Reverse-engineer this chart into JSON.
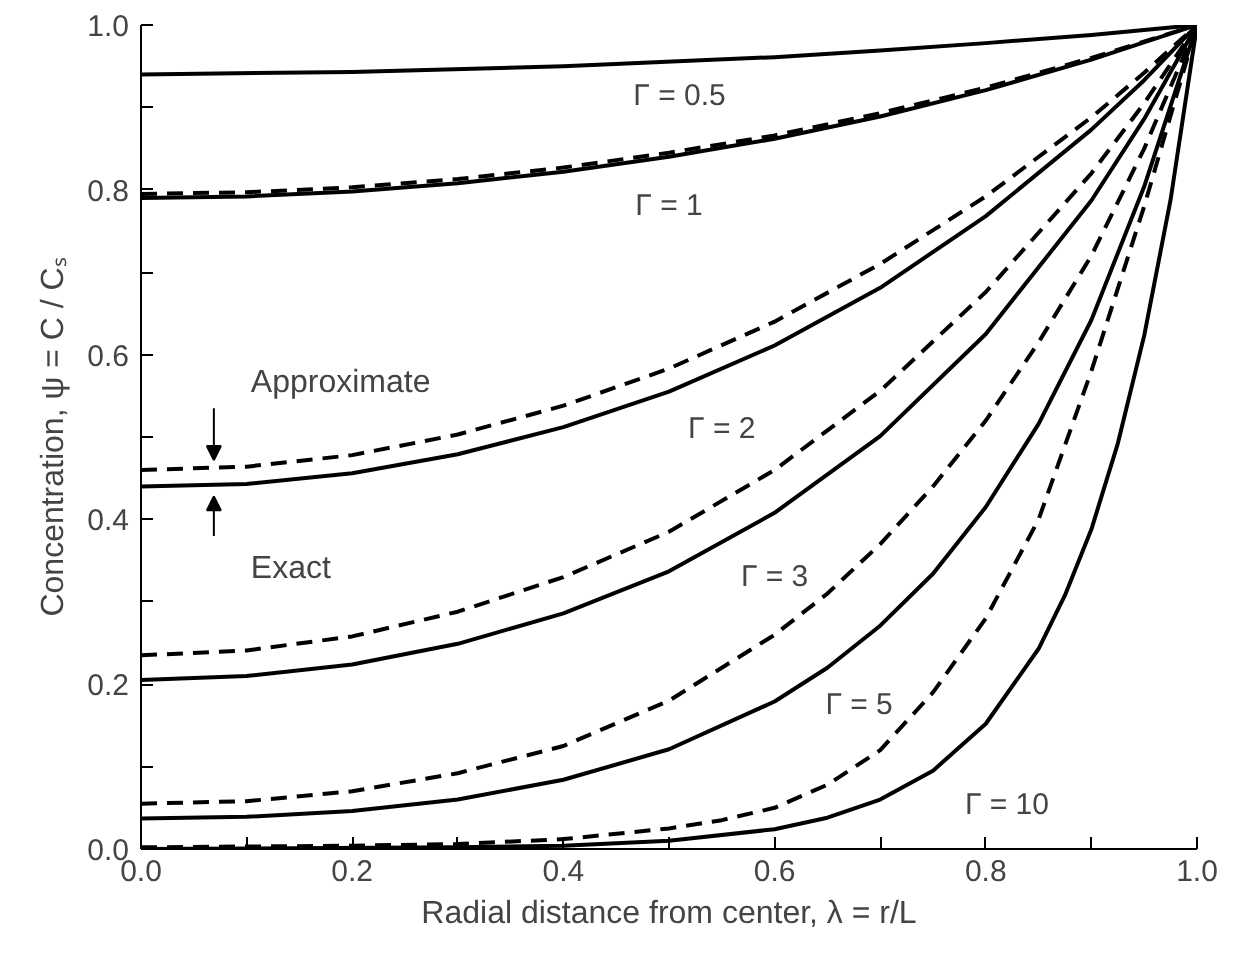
{
  "chart_data": {
    "type": "line",
    "xlabel": "Radial distance from center, λ = r/L",
    "ylabel": "Concentration, ψ = C / Cₛ",
    "xlim": [
      0,
      1
    ],
    "ylim": [
      0,
      1
    ],
    "xticks": [
      {
        "value": 0,
        "label": "0.0"
      },
      {
        "value": 0.1,
        "label": null
      },
      {
        "value": 0.2,
        "label": "0.2"
      },
      {
        "value": 0.3,
        "label": null
      },
      {
        "value": 0.4,
        "label": "0.4"
      },
      {
        "value": 0.5,
        "label": null
      },
      {
        "value": 0.6,
        "label": "0.6"
      },
      {
        "value": 0.7,
        "label": null
      },
      {
        "value": 0.8,
        "label": "0.8"
      },
      {
        "value": 0.9,
        "label": null
      },
      {
        "value": 1,
        "label": "1.0"
      }
    ],
    "yticks": [
      {
        "value": 0,
        "label": "0.0"
      },
      {
        "value": 0.1,
        "label": null
      },
      {
        "value": 0.2,
        "label": "0.2"
      },
      {
        "value": 0.3,
        "label": null
      },
      {
        "value": 0.4,
        "label": "0.4"
      },
      {
        "value": 0.5,
        "label": null
      },
      {
        "value": 0.6,
        "label": "0.6"
      },
      {
        "value": 0.7,
        "label": null
      },
      {
        "value": 0.8,
        "label": "0.8"
      },
      {
        "value": 0.9,
        "label": null
      },
      {
        "value": 1,
        "label": "1.0"
      }
    ],
    "series": [
      {
        "color": "#000000",
        "line_style": "solid",
        "x": [
          0,
          0.2,
          0.4,
          0.6,
          0.7,
          0.8,
          0.9,
          1
        ],
        "values": [
          0.94,
          0.943,
          0.95,
          0.961,
          0.969,
          0.978,
          0.988,
          1
        ]
      },
      {
        "color": "#000000",
        "line_style": "solid",
        "x": [
          0,
          0.1,
          0.2,
          0.3,
          0.4,
          0.5,
          0.6,
          0.7,
          0.8,
          0.9,
          1
        ],
        "values": [
          0.79,
          0.792,
          0.798,
          0.808,
          0.822,
          0.84,
          0.862,
          0.889,
          0.921,
          0.958,
          1
        ]
      },
      {
        "color": "#000000",
        "line_style": "dashed",
        "x": [
          0,
          0.1,
          0.2,
          0.3,
          0.4,
          0.5,
          0.6,
          0.7,
          0.8,
          0.9,
          1
        ],
        "values": [
          0.795,
          0.797,
          0.803,
          0.813,
          0.827,
          0.845,
          0.866,
          0.893,
          0.924,
          0.96,
          1
        ]
      },
      {
        "color": "#000000",
        "line_style": "solid",
        "x": [
          0,
          0.1,
          0.2,
          0.3,
          0.4,
          0.5,
          0.6,
          0.7,
          0.8,
          0.9,
          0.95,
          1
        ],
        "values": [
          0.44,
          0.443,
          0.456,
          0.479,
          0.512,
          0.555,
          0.611,
          0.681,
          0.768,
          0.873,
          0.933,
          1
        ]
      },
      {
        "color": "#000000",
        "line_style": "dashed",
        "x": [
          0,
          0.1,
          0.2,
          0.3,
          0.4,
          0.5,
          0.6,
          0.7,
          0.8,
          0.9,
          0.95,
          1
        ],
        "values": [
          0.46,
          0.464,
          0.478,
          0.503,
          0.538,
          0.583,
          0.64,
          0.71,
          0.792,
          0.888,
          0.942,
          1
        ]
      },
      {
        "color": "#000000",
        "line_style": "solid",
        "x": [
          0,
          0.1,
          0.2,
          0.3,
          0.4,
          0.5,
          0.6,
          0.7,
          0.8,
          0.9,
          0.95,
          1
        ],
        "values": [
          0.205,
          0.21,
          0.224,
          0.249,
          0.286,
          0.337,
          0.408,
          0.501,
          0.625,
          0.787,
          0.886,
          1
        ]
      },
      {
        "color": "#000000",
        "line_style": "dashed",
        "x": [
          0,
          0.1,
          0.2,
          0.3,
          0.4,
          0.5,
          0.6,
          0.7,
          0.8,
          0.9,
          0.95,
          1
        ],
        "values": [
          0.235,
          0.241,
          0.258,
          0.288,
          0.33,
          0.385,
          0.46,
          0.556,
          0.676,
          0.82,
          0.905,
          1
        ]
      },
      {
        "color": "#000000",
        "line_style": "solid",
        "x": [
          0,
          0.1,
          0.2,
          0.3,
          0.4,
          0.5,
          0.6,
          0.65,
          0.7,
          0.75,
          0.8,
          0.85,
          0.9,
          0.95,
          1
        ],
        "values": [
          0.037,
          0.039,
          0.046,
          0.06,
          0.084,
          0.121,
          0.179,
          0.22,
          0.271,
          0.334,
          0.415,
          0.516,
          0.642,
          0.804,
          1
        ]
      },
      {
        "color": "#000000",
        "line_style": "dashed",
        "x": [
          0,
          0.1,
          0.2,
          0.3,
          0.4,
          0.5,
          0.6,
          0.65,
          0.7,
          0.75,
          0.8,
          0.85,
          0.9,
          0.95,
          1
        ],
        "values": [
          0.055,
          0.058,
          0.07,
          0.092,
          0.125,
          0.18,
          0.26,
          0.31,
          0.37,
          0.44,
          0.52,
          0.615,
          0.72,
          0.85,
          1
        ]
      },
      {
        "color": "#000000",
        "line_style": "solid",
        "x": [
          0,
          0.3,
          0.4,
          0.5,
          0.6,
          0.65,
          0.7,
          0.75,
          0.8,
          0.85,
          0.875,
          0.9,
          0.925,
          0.95,
          0.975,
          1
        ],
        "values": [
          0,
          0.002,
          0.004,
          0.01,
          0.024,
          0.038,
          0.06,
          0.095,
          0.152,
          0.243,
          0.308,
          0.388,
          0.492,
          0.623,
          0.788,
          1
        ]
      },
      {
        "color": "#000000",
        "line_style": "dashed",
        "x": [
          0,
          0.2,
          0.3,
          0.4,
          0.5,
          0.55,
          0.6,
          0.65,
          0.7,
          0.75,
          0.8,
          0.85,
          0.9,
          0.95,
          1
        ],
        "values": [
          0.002,
          0.004,
          0.006,
          0.012,
          0.025,
          0.035,
          0.05,
          0.078,
          0.12,
          0.19,
          0.28,
          0.4,
          0.58,
          0.78,
          1
        ]
      }
    ],
    "annotations": [
      "Γ = 0.5",
      "Γ = 1",
      "Γ = 2",
      "Γ = 3",
      "Γ = 5",
      "Γ = 10",
      {
        "text": "Approximate",
        "x": 0.069,
        "y": 0.46
      },
      {
        "text": "Exact",
        "x": 0.069,
        "y": 0.44
      }
    ]
  }
}
